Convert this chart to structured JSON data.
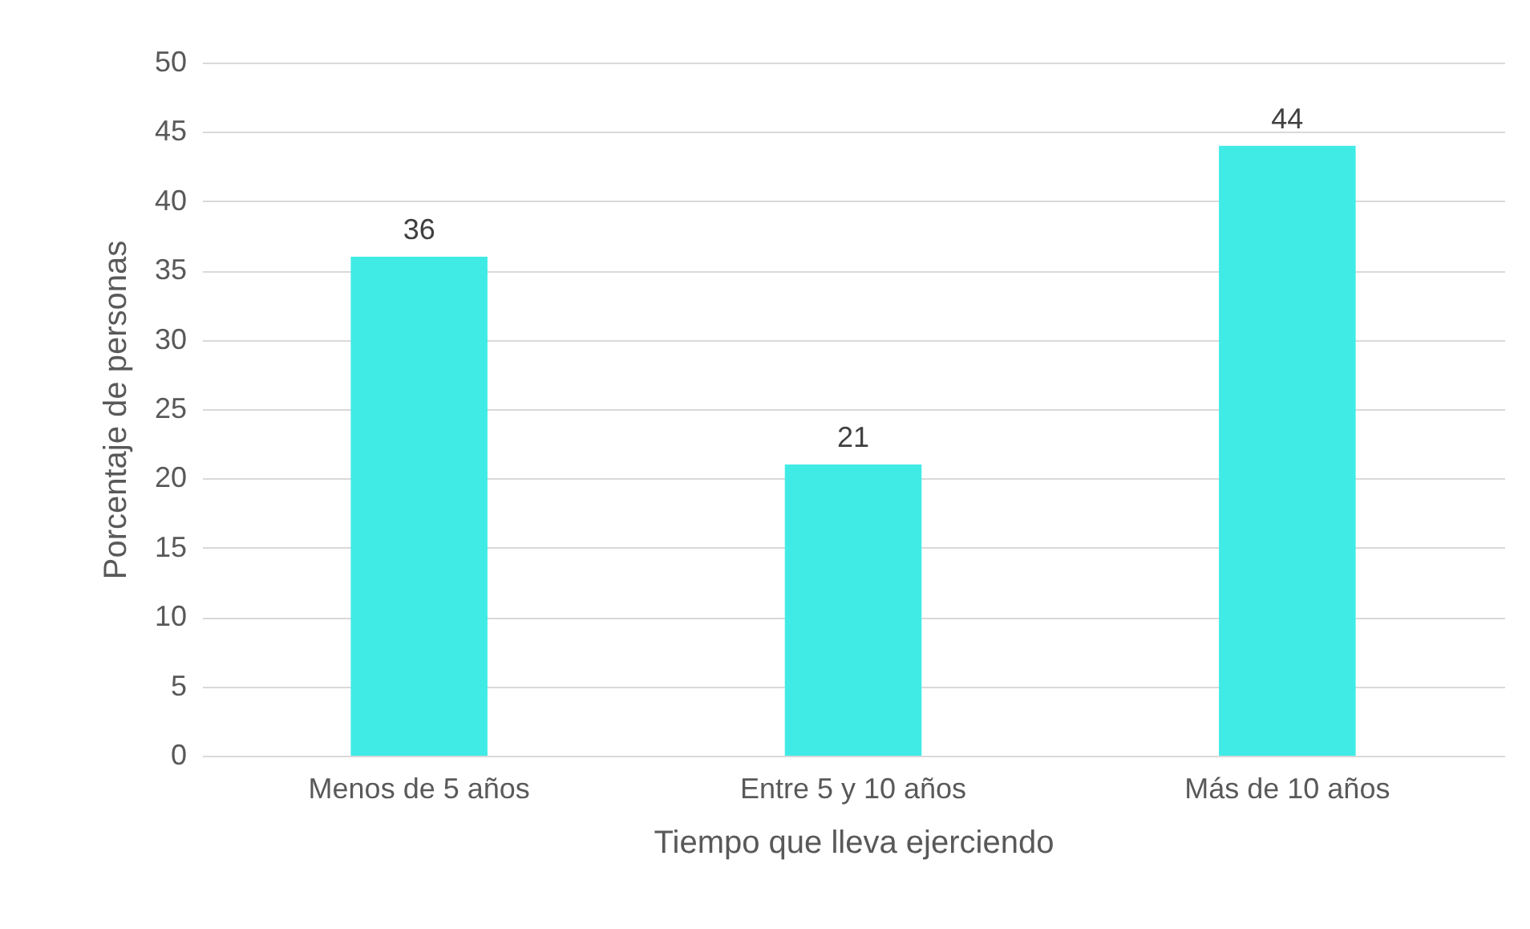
{
  "chart_data": {
    "type": "bar",
    "xlabel": "Tiempo que lleva ejerciendo",
    "ylabel": "Porcentaje de personas",
    "categories": [
      "Menos de 5 años",
      "Entre 5 y 10 años",
      "Más de 10 años"
    ],
    "values": [
      36,
      21,
      44
    ],
    "color": "#40ebe6",
    "ylim": [
      0,
      50
    ],
    "yticks": [
      0,
      5,
      10,
      15,
      20,
      25,
      30,
      35,
      40,
      45,
      50
    ],
    "grid": "y",
    "data_labels": true
  }
}
